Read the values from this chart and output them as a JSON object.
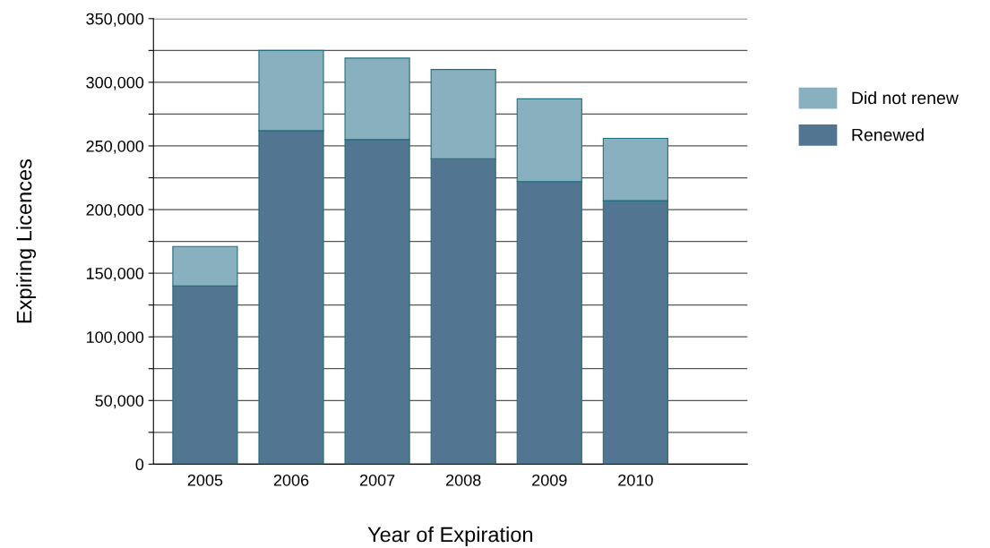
{
  "chart_data": {
    "type": "bar",
    "stacked": true,
    "xlabel": "Year of Expiration",
    "ylabel": "Expiring Licences",
    "categories": [
      "2005",
      "2006",
      "2007",
      "2008",
      "2009",
      "2010"
    ],
    "series": [
      {
        "name": "Renewed",
        "color": "#527591",
        "values": [
          140000,
          262000,
          255000,
          240000,
          222000,
          207000
        ]
      },
      {
        "name": "Did not renew",
        "color": "#88b0bf",
        "values": [
          31000,
          63000,
          64000,
          70000,
          65000,
          49000
        ]
      }
    ],
    "ylim": [
      0,
      350000
    ],
    "yticks": [
      0,
      {
        "value": 25000,
        "label": null
      },
      {
        "value": 50000,
        "label": "50,000"
      },
      {
        "value": 75000,
        "label": null
      },
      {
        "value": 100000,
        "label": "100,000"
      },
      {
        "value": 125000,
        "label": null
      },
      {
        "value": 150000,
        "label": "150,000"
      },
      {
        "value": 175000,
        "label": null
      },
      {
        "value": 200000,
        "label": "200,000"
      },
      {
        "value": 225000,
        "label": null
      },
      {
        "value": 250000,
        "label": "250,000"
      },
      {
        "value": 275000,
        "label": null
      },
      {
        "value": 300000,
        "label": "300,000"
      },
      {
        "value": 325000,
        "label": null
      },
      {
        "value": 350000,
        "label": "350,000"
      }
    ],
    "grid": "y",
    "legend": "right"
  }
}
